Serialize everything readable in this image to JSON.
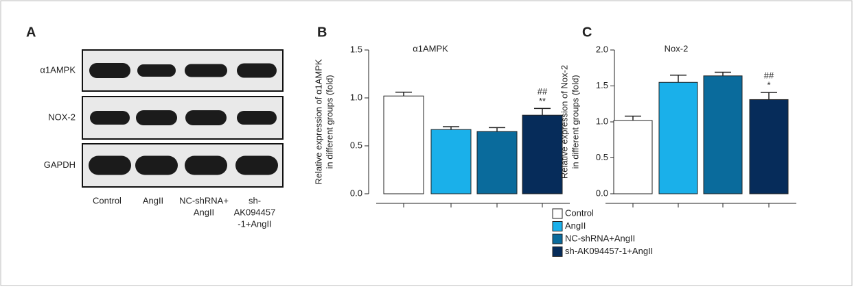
{
  "panels": [
    "A",
    "B",
    "C"
  ],
  "blot": {
    "rows": [
      "α1AMPK",
      "NOX-2",
      "GAPDH"
    ],
    "lanes": [
      [
        "Control"
      ],
      [
        "AngII"
      ],
      [
        "NC-shRNA+",
        "AngII"
      ],
      [
        "sh-",
        "AK094457",
        "-1+AngII"
      ]
    ]
  },
  "legend": [
    "Control",
    "AngII",
    "NC-shRNA+AngII",
    "sh-AK094457-1+AngII"
  ],
  "chart_data": [
    {
      "type": "bar",
      "title": "α1AMPK",
      "ylabel": [
        "Relative expression of α1AMPK",
        "in different groups (fold)"
      ],
      "categories": [
        null,
        null,
        null,
        null
      ],
      "values": [
        1.02,
        0.67,
        0.65,
        0.82
      ],
      "errors": [
        0.04,
        0.03,
        0.04,
        0.07
      ],
      "colors": [
        "#ffffff",
        "#1ab0ea",
        "#0a6b9c",
        "#062c5a"
      ],
      "annotations": [
        null,
        null,
        null,
        [
          "##",
          "**"
        ]
      ],
      "ylim": [
        0,
        1.5
      ],
      "yticks": [
        {
          "value": 0,
          "label": "0.0"
        },
        0.5,
        {
          "value": 1,
          "label": "1.0"
        },
        1.5
      ]
    },
    {
      "type": "bar",
      "title": "Nox-2",
      "ylabel": [
        "Relative expression of Nox-2",
        "in different groups (fold)"
      ],
      "categories": [
        null,
        null,
        null,
        null
      ],
      "values": [
        1.02,
        1.55,
        1.64,
        1.31
      ],
      "errors": [
        0.06,
        0.1,
        0.05,
        0.1
      ],
      "colors": [
        "#ffffff",
        "#1ab0ea",
        "#0a6b9c",
        "#062c5a"
      ],
      "annotations": [
        null,
        null,
        null,
        [
          "##",
          "*"
        ]
      ],
      "ylim": [
        0,
        2
      ],
      "yticks": [
        {
          "value": 0,
          "label": "0.0"
        },
        0.5,
        {
          "value": 1,
          "label": "1.0"
        },
        1.5,
        {
          "value": 2,
          "label": "2.0"
        }
      ]
    }
  ]
}
